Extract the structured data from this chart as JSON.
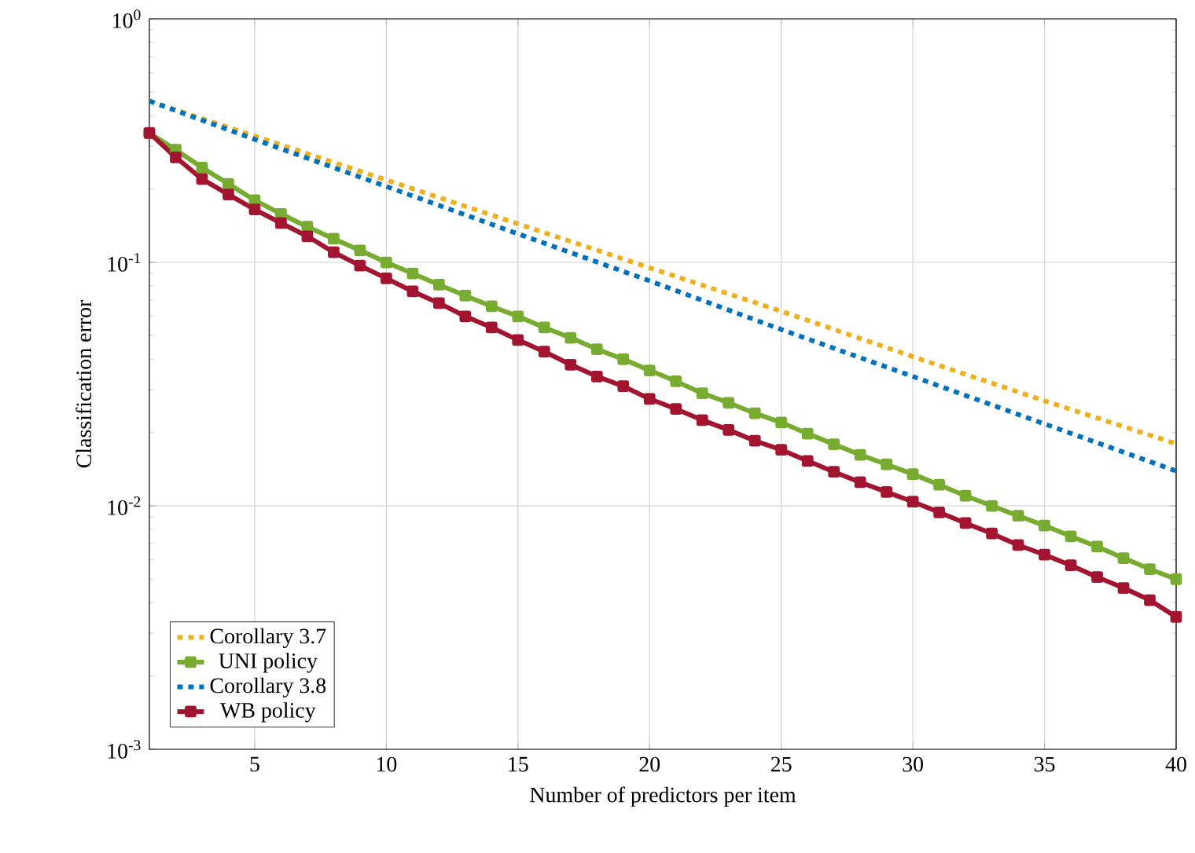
{
  "chart_data": {
    "type": "line",
    "xlabel": "Number of predictors per item",
    "ylabel": "Classification error",
    "x": [
      1,
      2,
      3,
      4,
      5,
      6,
      7,
      8,
      9,
      10,
      11,
      12,
      13,
      14,
      15,
      16,
      17,
      18,
      19,
      20,
      21,
      22,
      23,
      24,
      25,
      26,
      27,
      28,
      29,
      30,
      31,
      32,
      33,
      34,
      35,
      36,
      37,
      38,
      39,
      40
    ],
    "series": [
      {
        "name": "Corollary 3.7",
        "color": "#edb120",
        "line_style": "dotted",
        "marker": "none",
        "x": [
          1,
          5,
          10,
          15,
          20,
          25,
          30,
          35,
          40
        ],
        "values": [
          0.46,
          0.33,
          0.218,
          0.144,
          0.095,
          0.063,
          0.041,
          0.027,
          0.018
        ]
      },
      {
        "name": "UNI policy",
        "color": "#77ac30",
        "line_style": "solid",
        "marker": "square",
        "values": [
          0.34,
          0.29,
          0.245,
          0.21,
          0.18,
          0.158,
          0.14,
          0.125,
          0.112,
          0.1,
          0.09,
          0.081,
          0.073,
          0.066,
          0.06,
          0.054,
          0.049,
          0.044,
          0.04,
          0.036,
          0.0325,
          0.029,
          0.0265,
          0.024,
          0.022,
          0.0198,
          0.0179,
          0.0162,
          0.0148,
          0.0135,
          0.0122,
          0.011,
          0.01,
          0.0091,
          0.0083,
          0.0075,
          0.0068,
          0.0061,
          0.0055,
          0.005
        ]
      },
      {
        "name": "Corollary 3.8",
        "color": "#0072bd",
        "line_style": "dotted",
        "marker": "none",
        "x": [
          1,
          5,
          10,
          15,
          20,
          25,
          30,
          35,
          40
        ],
        "values": [
          0.46,
          0.32,
          0.205,
          0.131,
          0.084,
          0.053,
          0.034,
          0.0217,
          0.0139
        ]
      },
      {
        "name": "WB policy",
        "color": "#a2142f",
        "line_style": "solid",
        "marker": "square",
        "values": [
          0.34,
          0.27,
          0.22,
          0.19,
          0.165,
          0.145,
          0.128,
          0.11,
          0.097,
          0.086,
          0.076,
          0.068,
          0.06,
          0.054,
          0.048,
          0.043,
          0.038,
          0.034,
          0.031,
          0.0275,
          0.025,
          0.0225,
          0.0205,
          0.0185,
          0.017,
          0.0153,
          0.0138,
          0.0125,
          0.0114,
          0.0104,
          0.0094,
          0.0085,
          0.0077,
          0.0069,
          0.0063,
          0.0057,
          0.0051,
          0.0046,
          0.0041,
          0.0035
        ]
      }
    ],
    "log": "y",
    "grid": true,
    "legend": "bottom left",
    "xlim": [
      1,
      40
    ],
    "xticks": [
      5,
      10,
      15,
      20,
      25,
      30,
      35,
      40
    ],
    "ylim": [
      0.001,
      1
    ],
    "yticks": [
      {
        "value": 0.001,
        "label": "10$^{-3}$"
      },
      {
        "value": 0.01,
        "label": "10$^{-2}$"
      },
      {
        "value": 0.1,
        "label": "10$^{-1}$"
      },
      {
        "value": 1,
        "label": "10$^{0}$"
      }
    ]
  }
}
